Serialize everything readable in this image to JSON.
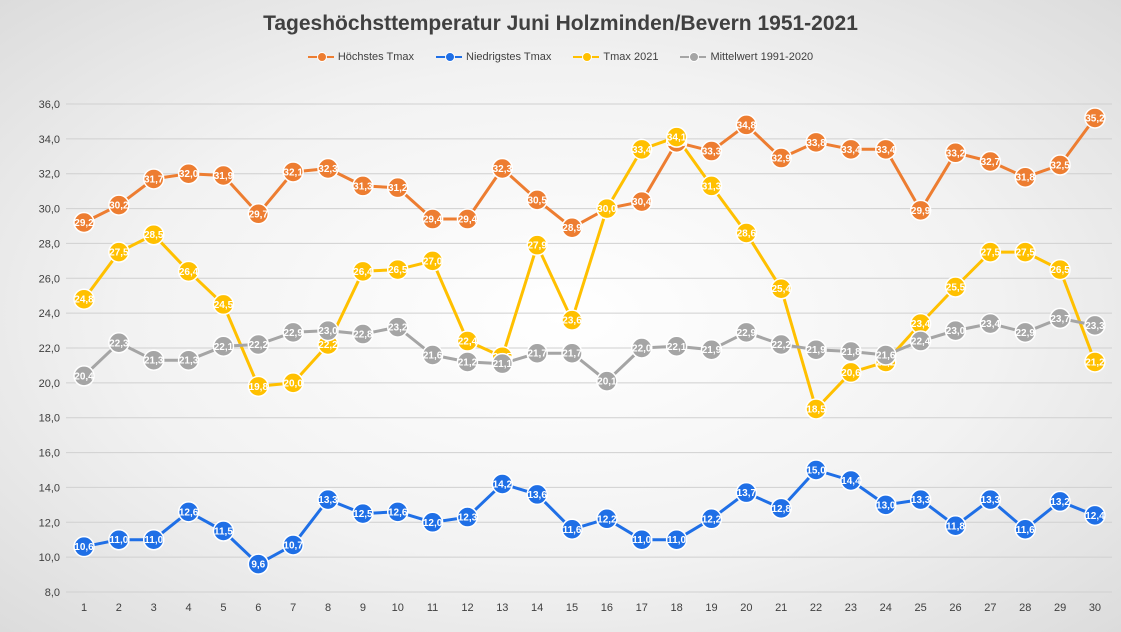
{
  "chart_data": {
    "type": "line",
    "title": "Tageshöchsttemperatur Juni Holzminden/Bevern 1951-2021",
    "xlabel": "",
    "ylabel": "",
    "ylim": [
      8.0,
      36.0
    ],
    "yticks": [
      "8,0",
      "10,0",
      "12,0",
      "14,0",
      "16,0",
      "18,0",
      "20,0",
      "22,0",
      "24,0",
      "26,0",
      "28,0",
      "30,0",
      "32,0",
      "34,0",
      "36,0"
    ],
    "grid": true,
    "legend_position": "top-center",
    "categories": [
      "1",
      "2",
      "3",
      "4",
      "5",
      "6",
      "7",
      "8",
      "9",
      "10",
      "11",
      "12",
      "13",
      "14",
      "15",
      "16",
      "17",
      "18",
      "19",
      "20",
      "21",
      "22",
      "23",
      "24",
      "25",
      "26",
      "27",
      "28",
      "29",
      "30"
    ],
    "series": [
      {
        "name": "Höchstes Tmax",
        "color": "#ED7D31",
        "values": [
          29.2,
          30.2,
          31.7,
          32.0,
          31.9,
          29.7,
          32.1,
          32.3,
          31.3,
          31.2,
          29.4,
          29.4,
          32.3,
          30.5,
          28.9,
          30.0,
          30.4,
          33.8,
          33.3,
          34.8,
          32.9,
          33.8,
          33.4,
          33.4,
          29.9,
          33.2,
          32.7,
          31.8,
          32.5,
          35.2
        ],
        "labels": [
          "29,2",
          "30,2",
          "31,7",
          "32,0",
          "31,9",
          "29,7",
          "32,1",
          "32,3",
          "31,3",
          "31,2",
          "29,4",
          "29,4",
          "32,3",
          "30,5",
          "28,9",
          "30,0",
          "30,4",
          "33,8",
          "33,3",
          "34,8",
          "32,9",
          "33,8",
          "33,4",
          "33,4",
          "29,9",
          "33,2",
          "32,7",
          "31,8",
          "32,5",
          "35,2"
        ]
      },
      {
        "name": "Niedrigstes Tmax",
        "color": "#1F6FE6",
        "values": [
          10.6,
          11.0,
          11.0,
          12.6,
          11.5,
          9.6,
          10.7,
          13.3,
          12.5,
          12.6,
          12.0,
          12.3,
          14.2,
          13.6,
          11.6,
          12.2,
          11.0,
          11.0,
          12.2,
          13.7,
          12.8,
          15.0,
          14.4,
          13.0,
          13.3,
          11.8,
          13.3,
          11.6,
          13.2,
          12.4
        ],
        "labels": [
          "10,6",
          "11,0",
          "11,0",
          "12,6",
          "11,5",
          "9,6",
          "10,7",
          "13,3",
          "12,5",
          "12,6",
          "12,0",
          "12,3",
          "14,2",
          "13,6",
          "11,6",
          "12,2",
          "11,0",
          "11,0",
          "12,2",
          "13,7",
          "12,8",
          "15,0",
          "14,4",
          "13,0",
          "13,3",
          "11,8",
          "13,3",
          "11,6",
          "13,2",
          "12,4"
        ]
      },
      {
        "name": "Tmax 2021",
        "color": "#FFC000",
        "values": [
          24.8,
          27.5,
          28.5,
          26.4,
          24.5,
          19.8,
          20.0,
          22.2,
          26.4,
          26.5,
          27.0,
          22.4,
          21.5,
          27.9,
          23.6,
          30.0,
          33.4,
          34.1,
          31.3,
          28.6,
          25.4,
          18.5,
          20.6,
          21.2,
          23.4,
          25.5,
          27.5,
          27.5,
          26.5,
          21.2
        ],
        "labels": [
          "24,8",
          "27,5",
          "28,5",
          "26,4",
          "24,5",
          "19,8",
          "20,0",
          "22,2",
          "26,4",
          "26,5",
          "27,0",
          "22,4",
          "21,5",
          "27,9",
          "23,6",
          "30,0",
          "33,4",
          "34,1",
          "31,3",
          "28,6",
          "25,4",
          "18,5",
          "20,6",
          "21,2",
          "23,4",
          "25,5",
          "27,5",
          "27,5",
          "26,5",
          "21,2"
        ]
      },
      {
        "name": "Mittelwert 1991-2020",
        "color": "#A5A5A5",
        "values": [
          20.4,
          22.3,
          21.3,
          21.3,
          22.1,
          22.2,
          22.9,
          23.0,
          22.8,
          23.2,
          21.6,
          21.2,
          21.1,
          21.7,
          21.7,
          20.1,
          22.0,
          22.1,
          21.9,
          22.9,
          22.2,
          21.9,
          21.8,
          21.6,
          22.4,
          23.0,
          23.4,
          22.9,
          23.7,
          23.3
        ],
        "labels": [
          "20,4",
          "22,3",
          "21,3",
          "21,3",
          "22,1",
          "22,2",
          "22,9",
          "23,0",
          "22,8",
          "23,2",
          "21,6",
          "21,2",
          "21,1",
          "21,7",
          "21,7",
          "20,1",
          "22,0",
          "22,1",
          "21,9",
          "22,9",
          "22,2",
          "21,9",
          "21,8",
          "21,6",
          "22,4",
          "23,0",
          "23,4",
          "22,9",
          "23,7",
          "23,3"
        ]
      }
    ]
  }
}
